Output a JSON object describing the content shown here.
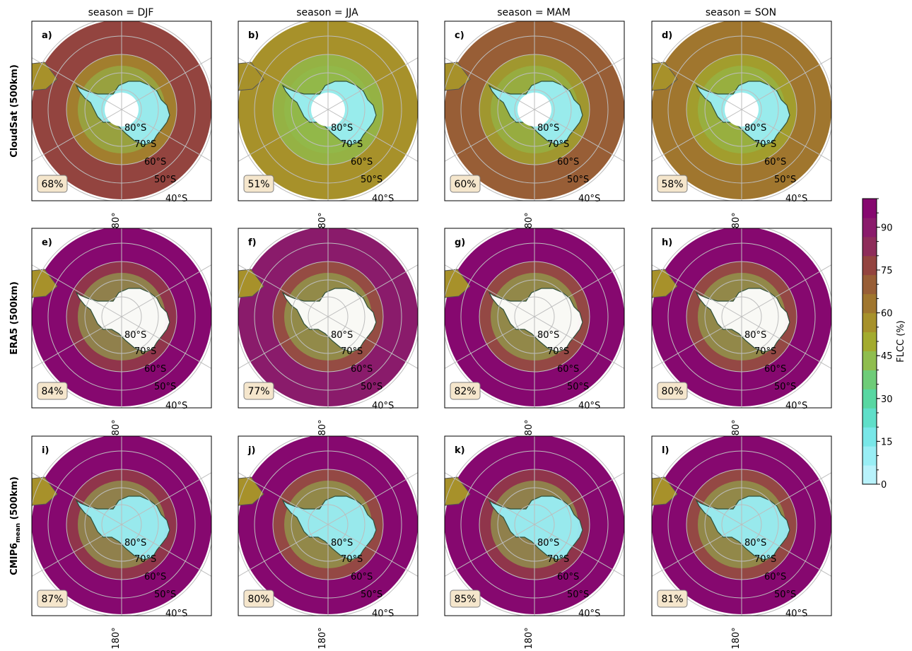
{
  "figure": {
    "row_labels": [
      "CloudSat (500km)",
      "ERA5 (500km)",
      "CMIP6"
    ],
    "row_label_subscript": "mean",
    "row_label_suffix": " (500km)",
    "column_titles": [
      "season = DJF",
      "season = JJA",
      "season = MAM",
      "season = SON"
    ],
    "panel_letters": [
      "a)",
      "b)",
      "c)",
      "d)",
      "e)",
      "f)",
      "g)",
      "h)",
      "i)",
      "j)",
      "k)",
      "l)"
    ],
    "panel_values": [
      "68%",
      "51%",
      "60%",
      "58%",
      "84%",
      "77%",
      "82%",
      "80%",
      "87%",
      "80%",
      "85%",
      "81%"
    ],
    "panel_fractions": [
      0.68,
      0.51,
      0.6,
      0.58,
      0.84,
      0.77,
      0.82,
      0.8,
      0.87,
      0.8,
      0.85,
      0.81
    ],
    "latitude_labels": [
      "80°S",
      "70°S",
      "60°S",
      "50°S",
      "40°S"
    ],
    "longitude_label": "180°",
    "colorbar": {
      "label": "FLCC (%)",
      "tick_labels": [
        "0",
        "15",
        "30",
        "45",
        "60",
        "75",
        "90"
      ],
      "range": [
        0,
        100
      ],
      "colors": [
        "#b8f2fb",
        "#99eef5",
        "#78e7e8",
        "#5fdfc9",
        "#58d7a2",
        "#6ecc78",
        "#8fbd4e",
        "#a3ab2e",
        "#a7912a",
        "#a0762e",
        "#985e36",
        "#93443f",
        "#8e2d5a",
        "#8a1b6b",
        "#86086f"
      ]
    }
  }
}
